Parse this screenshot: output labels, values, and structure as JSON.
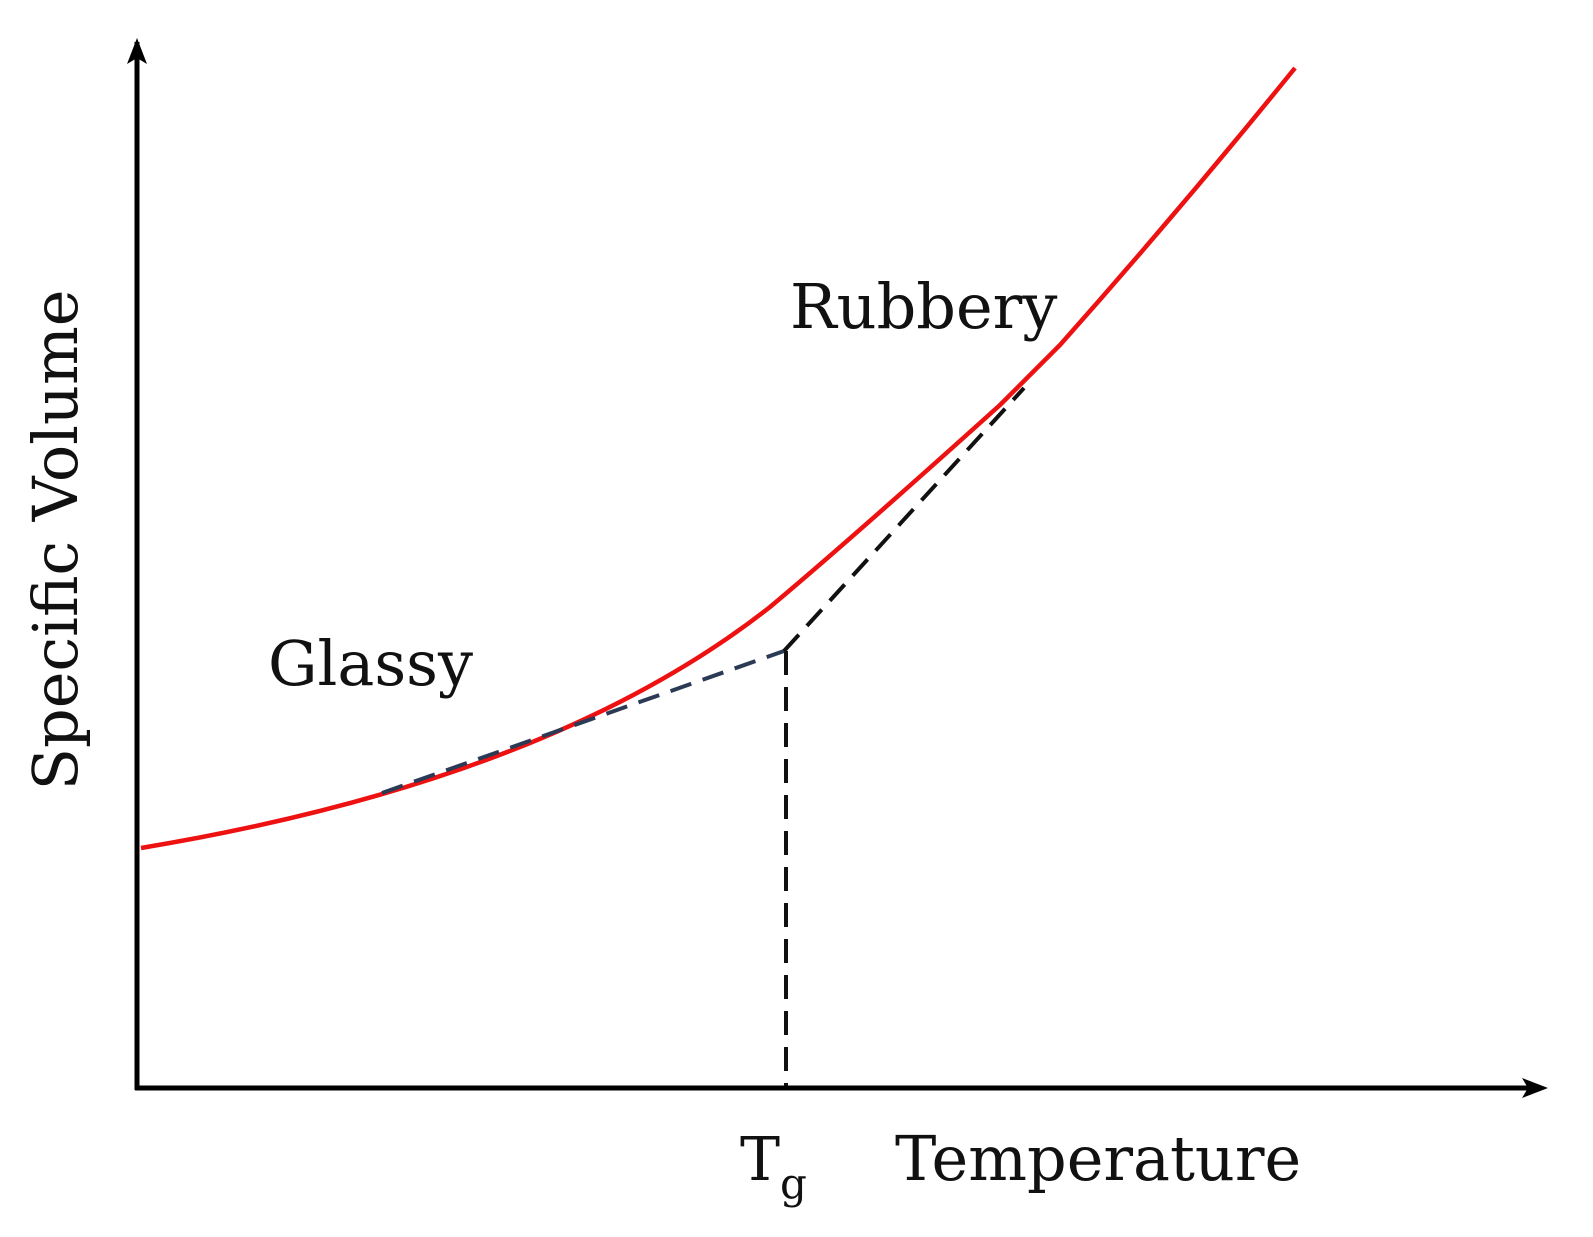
{
  "diagram": {
    "x_axis_label": "Temperature",
    "y_axis_label": "Specific Volume",
    "tg_label": "T",
    "tg_subscript": "g",
    "regions": {
      "glassy": "Glassy",
      "rubbery": "Rubbery"
    },
    "colors": {
      "curve": "#ee1111",
      "tangent_glassy": "#2b3a55",
      "tangent_rubbery": "#111111",
      "axes": "#000000"
    },
    "line_styles": {
      "curve": "solid",
      "tangents": "dashed",
      "tg_drop_line": "dashed"
    }
  }
}
